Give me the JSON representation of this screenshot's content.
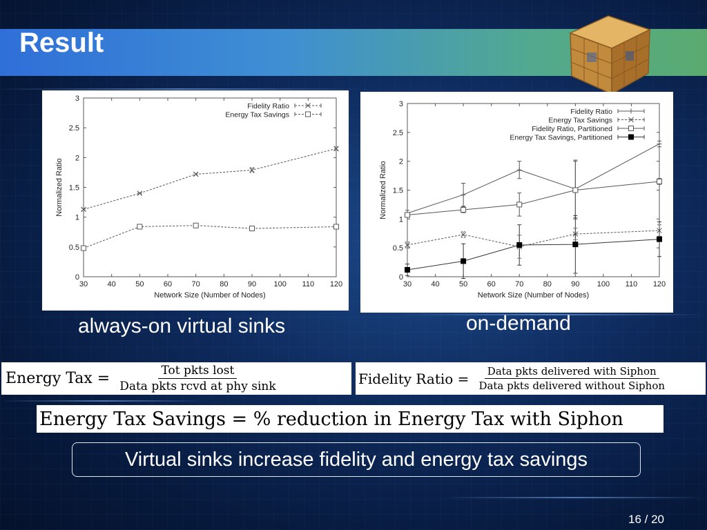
{
  "slide": {
    "title": "Result",
    "left_caption": "always-on virtual sinks",
    "right_caption": "on-demand",
    "highlight": "Virtual sinks increase fidelity and energy tax savings",
    "page_number": "16 / 20"
  },
  "formulas": {
    "energy_tax": {
      "lhs": "Energy Tax =",
      "numerator": "Tot pkts lost",
      "denominator": "Data pkts rcvd at phy sink"
    },
    "fidelity_ratio": {
      "lhs": "Fidelity Ratio =",
      "numerator": "Data pkts delivered with Siphon",
      "denominator": "Data pkts delivered without Siphon"
    },
    "savings": "Energy Tax Savings = % reduction in Energy Tax with Siphon"
  },
  "chart_data": [
    {
      "type": "line",
      "xlabel": "Network Size (Number of Nodes)",
      "ylabel": "Normalized Ratio",
      "xlim": [
        30,
        120
      ],
      "ylim": [
        0,
        3
      ],
      "xticks": [
        30,
        40,
        50,
        60,
        70,
        80,
        90,
        100,
        110,
        120
      ],
      "yticks": [
        0,
        0.5,
        1,
        1.5,
        2,
        2.5,
        3
      ],
      "legend_position": "top-right",
      "x": [
        30,
        50,
        70,
        90,
        120
      ],
      "series": [
        {
          "name": "Fidelity Ratio",
          "marker": "x",
          "dash": true,
          "values": [
            1.13,
            1.4,
            1.72,
            1.79,
            2.15
          ],
          "err": [
            0.02,
            0.01,
            0.02,
            0.04,
            0.03
          ]
        },
        {
          "name": "Energy Tax Savings",
          "marker": "square-open",
          "dash": true,
          "values": [
            0.48,
            0.84,
            0.86,
            0.81,
            0.84
          ],
          "err": [
            0.02,
            0.01,
            0.01,
            0.03,
            0.01
          ]
        }
      ]
    },
    {
      "type": "line",
      "xlabel": "Network Size (Number of Nodes)",
      "ylabel": "Normalized Ratio",
      "xlim": [
        30,
        120
      ],
      "ylim": [
        0,
        3
      ],
      "xticks": [
        30,
        40,
        50,
        60,
        70,
        80,
        90,
        100,
        110,
        120
      ],
      "yticks": [
        0,
        0.5,
        1,
        1.5,
        2,
        2.5,
        3
      ],
      "legend_position": "top-right",
      "x": [
        30,
        50,
        70,
        90,
        120
      ],
      "series": [
        {
          "name": "Fidelity Ratio",
          "marker": "plus",
          "dash": false,
          "values": [
            1.1,
            1.42,
            1.85,
            1.52,
            2.3
          ],
          "err": [
            0.05,
            0.2,
            0.15,
            0.5,
            0.05
          ]
        },
        {
          "name": "Energy Tax Savings",
          "marker": "x",
          "dash": true,
          "values": [
            0.55,
            0.73,
            0.52,
            0.74,
            0.8
          ],
          "err": [
            0.05,
            0.05,
            0.2,
            0.1,
            0.1
          ]
        },
        {
          "name": "Fidelity Ratio, Partitioned",
          "marker": "square-open",
          "dash": false,
          "values": [
            1.07,
            1.16,
            1.25,
            1.5,
            1.65
          ],
          "err": [
            0.04,
            0.05,
            0.2,
            0.5,
            0.05
          ]
        },
        {
          "name": "Energy Tax Savings, Partitioned",
          "marker": "square-filled",
          "dash": false,
          "values": [
            0.12,
            0.27,
            0.55,
            0.56,
            0.65
          ],
          "err": [
            0.1,
            0.3,
            0.35,
            0.5,
            0.3
          ]
        }
      ]
    }
  ]
}
